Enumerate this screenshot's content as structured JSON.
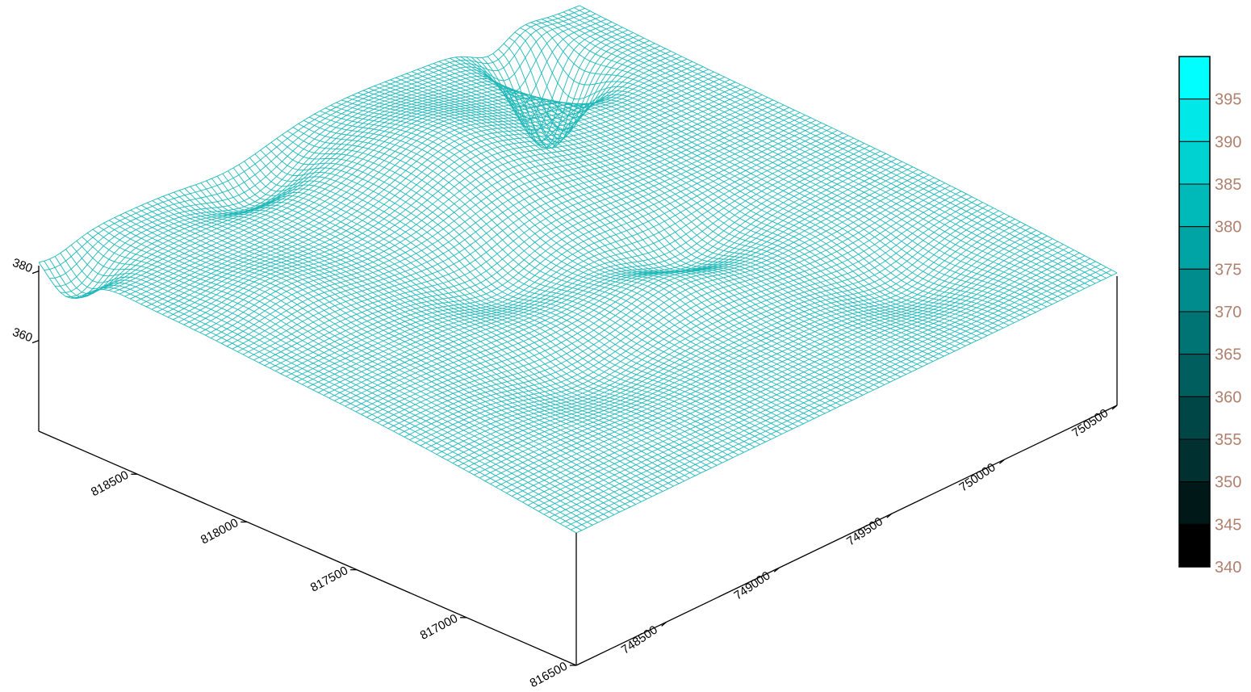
{
  "chart_data": {
    "type": "surface-wireframe",
    "title": "",
    "x_axis": {
      "ticks": [
        748500,
        749000,
        749500,
        750000,
        750500
      ],
      "tick_labels": [
        "748500",
        "749000",
        "749500",
        "750000",
        "750500"
      ],
      "range": [
        748100,
        750500
      ]
    },
    "y_axis": {
      "ticks": [
        816500,
        817000,
        817500,
        818000,
        818500
      ],
      "tick_labels": [
        "816500",
        "817000",
        "817500",
        "818000",
        "818500"
      ],
      "range": [
        816500,
        818950
      ]
    },
    "z_axis": {
      "ticks": [
        360,
        380
      ],
      "tick_labels": [
        "360",
        "380"
      ],
      "range": [
        340,
        400
      ]
    },
    "mesh_color": "#1fb8b8",
    "color_scale": {
      "min": 340,
      "max": 400,
      "labels": [
        "395",
        "390",
        "385",
        "380",
        "375",
        "370",
        "365",
        "360",
        "355",
        "350",
        "345",
        "340"
      ],
      "colors_top_to_bottom": [
        "#00ffff",
        "#00e8e8",
        "#00d2d2",
        "#00baba",
        "#00a4a4",
        "#008c8c",
        "#007474",
        "#005e5e",
        "#004646",
        "#003030",
        "#001818",
        "#000000"
      ]
    },
    "grid": false,
    "legend": "right"
  }
}
